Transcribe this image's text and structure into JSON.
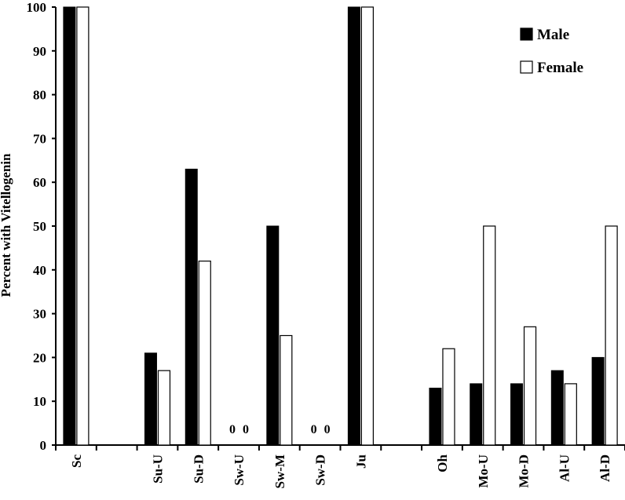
{
  "chart_data": {
    "type": "bar",
    "ylabel": "Percent with Vitellogenin",
    "xlabel": "",
    "ylim": [
      0,
      100
    ],
    "yticks": [
      0,
      10,
      20,
      30,
      40,
      50,
      60,
      70,
      80,
      90,
      100
    ],
    "grid": false,
    "legend_position": "top-right",
    "categories": [
      "Sc",
      "",
      "Su-U",
      "Su-D",
      "Sw-U",
      "Sw-M",
      "Sw-D",
      "Ju",
      "",
      "Oh",
      "Mo-U",
      "Mo-D",
      "Al-U",
      "Al-D"
    ],
    "series": [
      {
        "name": "Male",
        "color": "#000000",
        "fill": "solid",
        "values": [
          100,
          null,
          21,
          63,
          0,
          50,
          0,
          100,
          null,
          13,
          14,
          14,
          17,
          20
        ]
      },
      {
        "name": "Female",
        "color": "#ffffff",
        "fill": "outline",
        "values": [
          100,
          null,
          17,
          42,
          0,
          25,
          0,
          100,
          null,
          22,
          50,
          27,
          14,
          50
        ]
      }
    ],
    "annotations": [
      {
        "category": "Sw-U",
        "series": "Male",
        "text": "0"
      },
      {
        "category": "Sw-U",
        "series": "Female",
        "text": "0"
      },
      {
        "category": "Sw-D",
        "series": "Male",
        "text": "0"
      },
      {
        "category": "Sw-D",
        "series": "Female",
        "text": "0"
      }
    ]
  }
}
